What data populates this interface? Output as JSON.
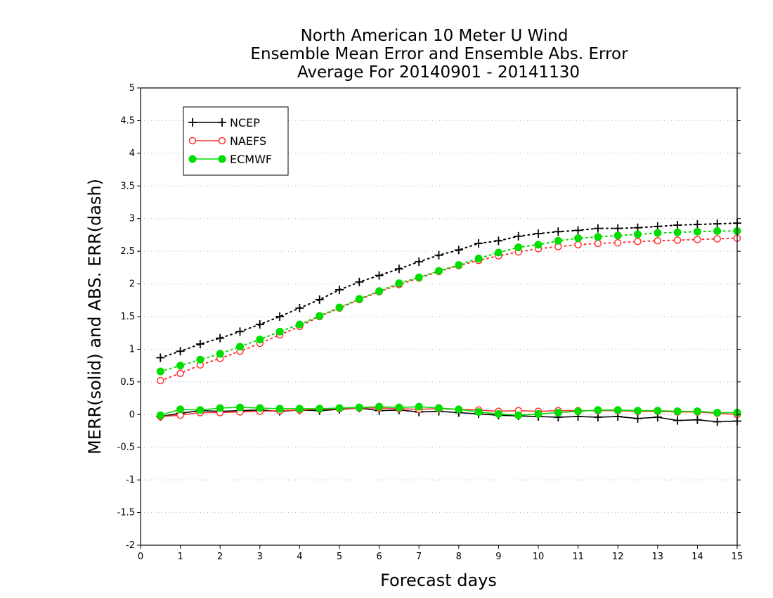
{
  "chart_data": {
    "type": "line",
    "title_lines": [
      "North American 10 Meter U Wind",
      "Ensemble Mean Error and Ensemble Abs. Error",
      "Average For 20140901 - 20141130"
    ],
    "xlabel": "Forecast days",
    "ylabel": "MERR(solid) and ABS. ERR(dash)",
    "xlim": [
      0,
      15
    ],
    "ylim": [
      -2,
      5
    ],
    "x_ticks": [
      0,
      1,
      2,
      3,
      4,
      5,
      6,
      7,
      8,
      9,
      10,
      11,
      12,
      13,
      14,
      15
    ],
    "y_ticks": [
      -2,
      -1.5,
      -1,
      -0.5,
      0,
      0.5,
      1,
      1.5,
      2,
      2.5,
      3,
      3.5,
      4,
      4.5,
      5
    ],
    "grid": "horizontal dotted",
    "legend_position": "top-left",
    "x": [
      0.5,
      1,
      1.5,
      2,
      2.5,
      3,
      3.5,
      4,
      4.5,
      5,
      5.5,
      6,
      6.5,
      7,
      7.5,
      8,
      8.5,
      9,
      9.5,
      10,
      10.5,
      11,
      11.5,
      12,
      12.5,
      13,
      13.5,
      14,
      14.5,
      15
    ],
    "series": [
      {
        "name": "NCEP",
        "color": "#000000",
        "marker": "plus",
        "mean_error": [
          -0.03,
          0.02,
          0.06,
          0.05,
          0.06,
          0.07,
          0.05,
          0.07,
          0.06,
          0.08,
          0.1,
          0.06,
          0.07,
          0.04,
          0.05,
          0.03,
          0.01,
          -0.01,
          -0.02,
          -0.03,
          -0.04,
          -0.03,
          -0.04,
          -0.03,
          -0.06,
          -0.04,
          -0.09,
          -0.08,
          -0.11,
          -0.1
        ],
        "abs_error": [
          0.87,
          0.97,
          1.08,
          1.17,
          1.27,
          1.38,
          1.5,
          1.63,
          1.76,
          1.91,
          2.03,
          2.13,
          2.23,
          2.34,
          2.44,
          2.52,
          2.62,
          2.66,
          2.73,
          2.77,
          2.8,
          2.82,
          2.85,
          2.85,
          2.86,
          2.88,
          2.9,
          2.91,
          2.92,
          2.93
        ]
      },
      {
        "name": "NAEFS",
        "color": "#ff3333",
        "marker": "open-circle",
        "mean_error": [
          -0.03,
          -0.01,
          0.03,
          0.03,
          0.04,
          0.05,
          0.06,
          0.07,
          0.08,
          0.09,
          0.1,
          0.1,
          0.09,
          0.08,
          0.09,
          0.08,
          0.07,
          0.05,
          0.06,
          0.05,
          0.06,
          0.06,
          0.06,
          0.06,
          0.05,
          0.05,
          0.04,
          0.04,
          0.02,
          0.0
        ],
        "abs_error": [
          0.52,
          0.63,
          0.76,
          0.86,
          0.97,
          1.09,
          1.22,
          1.35,
          1.5,
          1.63,
          1.76,
          1.88,
          1.99,
          2.09,
          2.19,
          2.28,
          2.36,
          2.43,
          2.49,
          2.54,
          2.57,
          2.6,
          2.62,
          2.63,
          2.65,
          2.66,
          2.67,
          2.68,
          2.69,
          2.7
        ]
      },
      {
        "name": "ECMWF",
        "color": "#00dd00",
        "marker": "filled-circle",
        "mean_error": [
          -0.01,
          0.08,
          0.07,
          0.1,
          0.11,
          0.1,
          0.09,
          0.09,
          0.09,
          0.1,
          0.11,
          0.12,
          0.11,
          0.12,
          0.1,
          0.08,
          0.04,
          0.01,
          -0.01,
          0.01,
          0.03,
          0.05,
          0.07,
          0.07,
          0.06,
          0.06,
          0.05,
          0.05,
          0.03,
          0.03
        ],
        "abs_error": [
          0.66,
          0.75,
          0.84,
          0.93,
          1.04,
          1.15,
          1.27,
          1.38,
          1.51,
          1.64,
          1.77,
          1.89,
          2.01,
          2.1,
          2.2,
          2.29,
          2.39,
          2.48,
          2.56,
          2.6,
          2.66,
          2.7,
          2.72,
          2.74,
          2.76,
          2.78,
          2.79,
          2.8,
          2.81,
          2.81
        ]
      }
    ]
  }
}
